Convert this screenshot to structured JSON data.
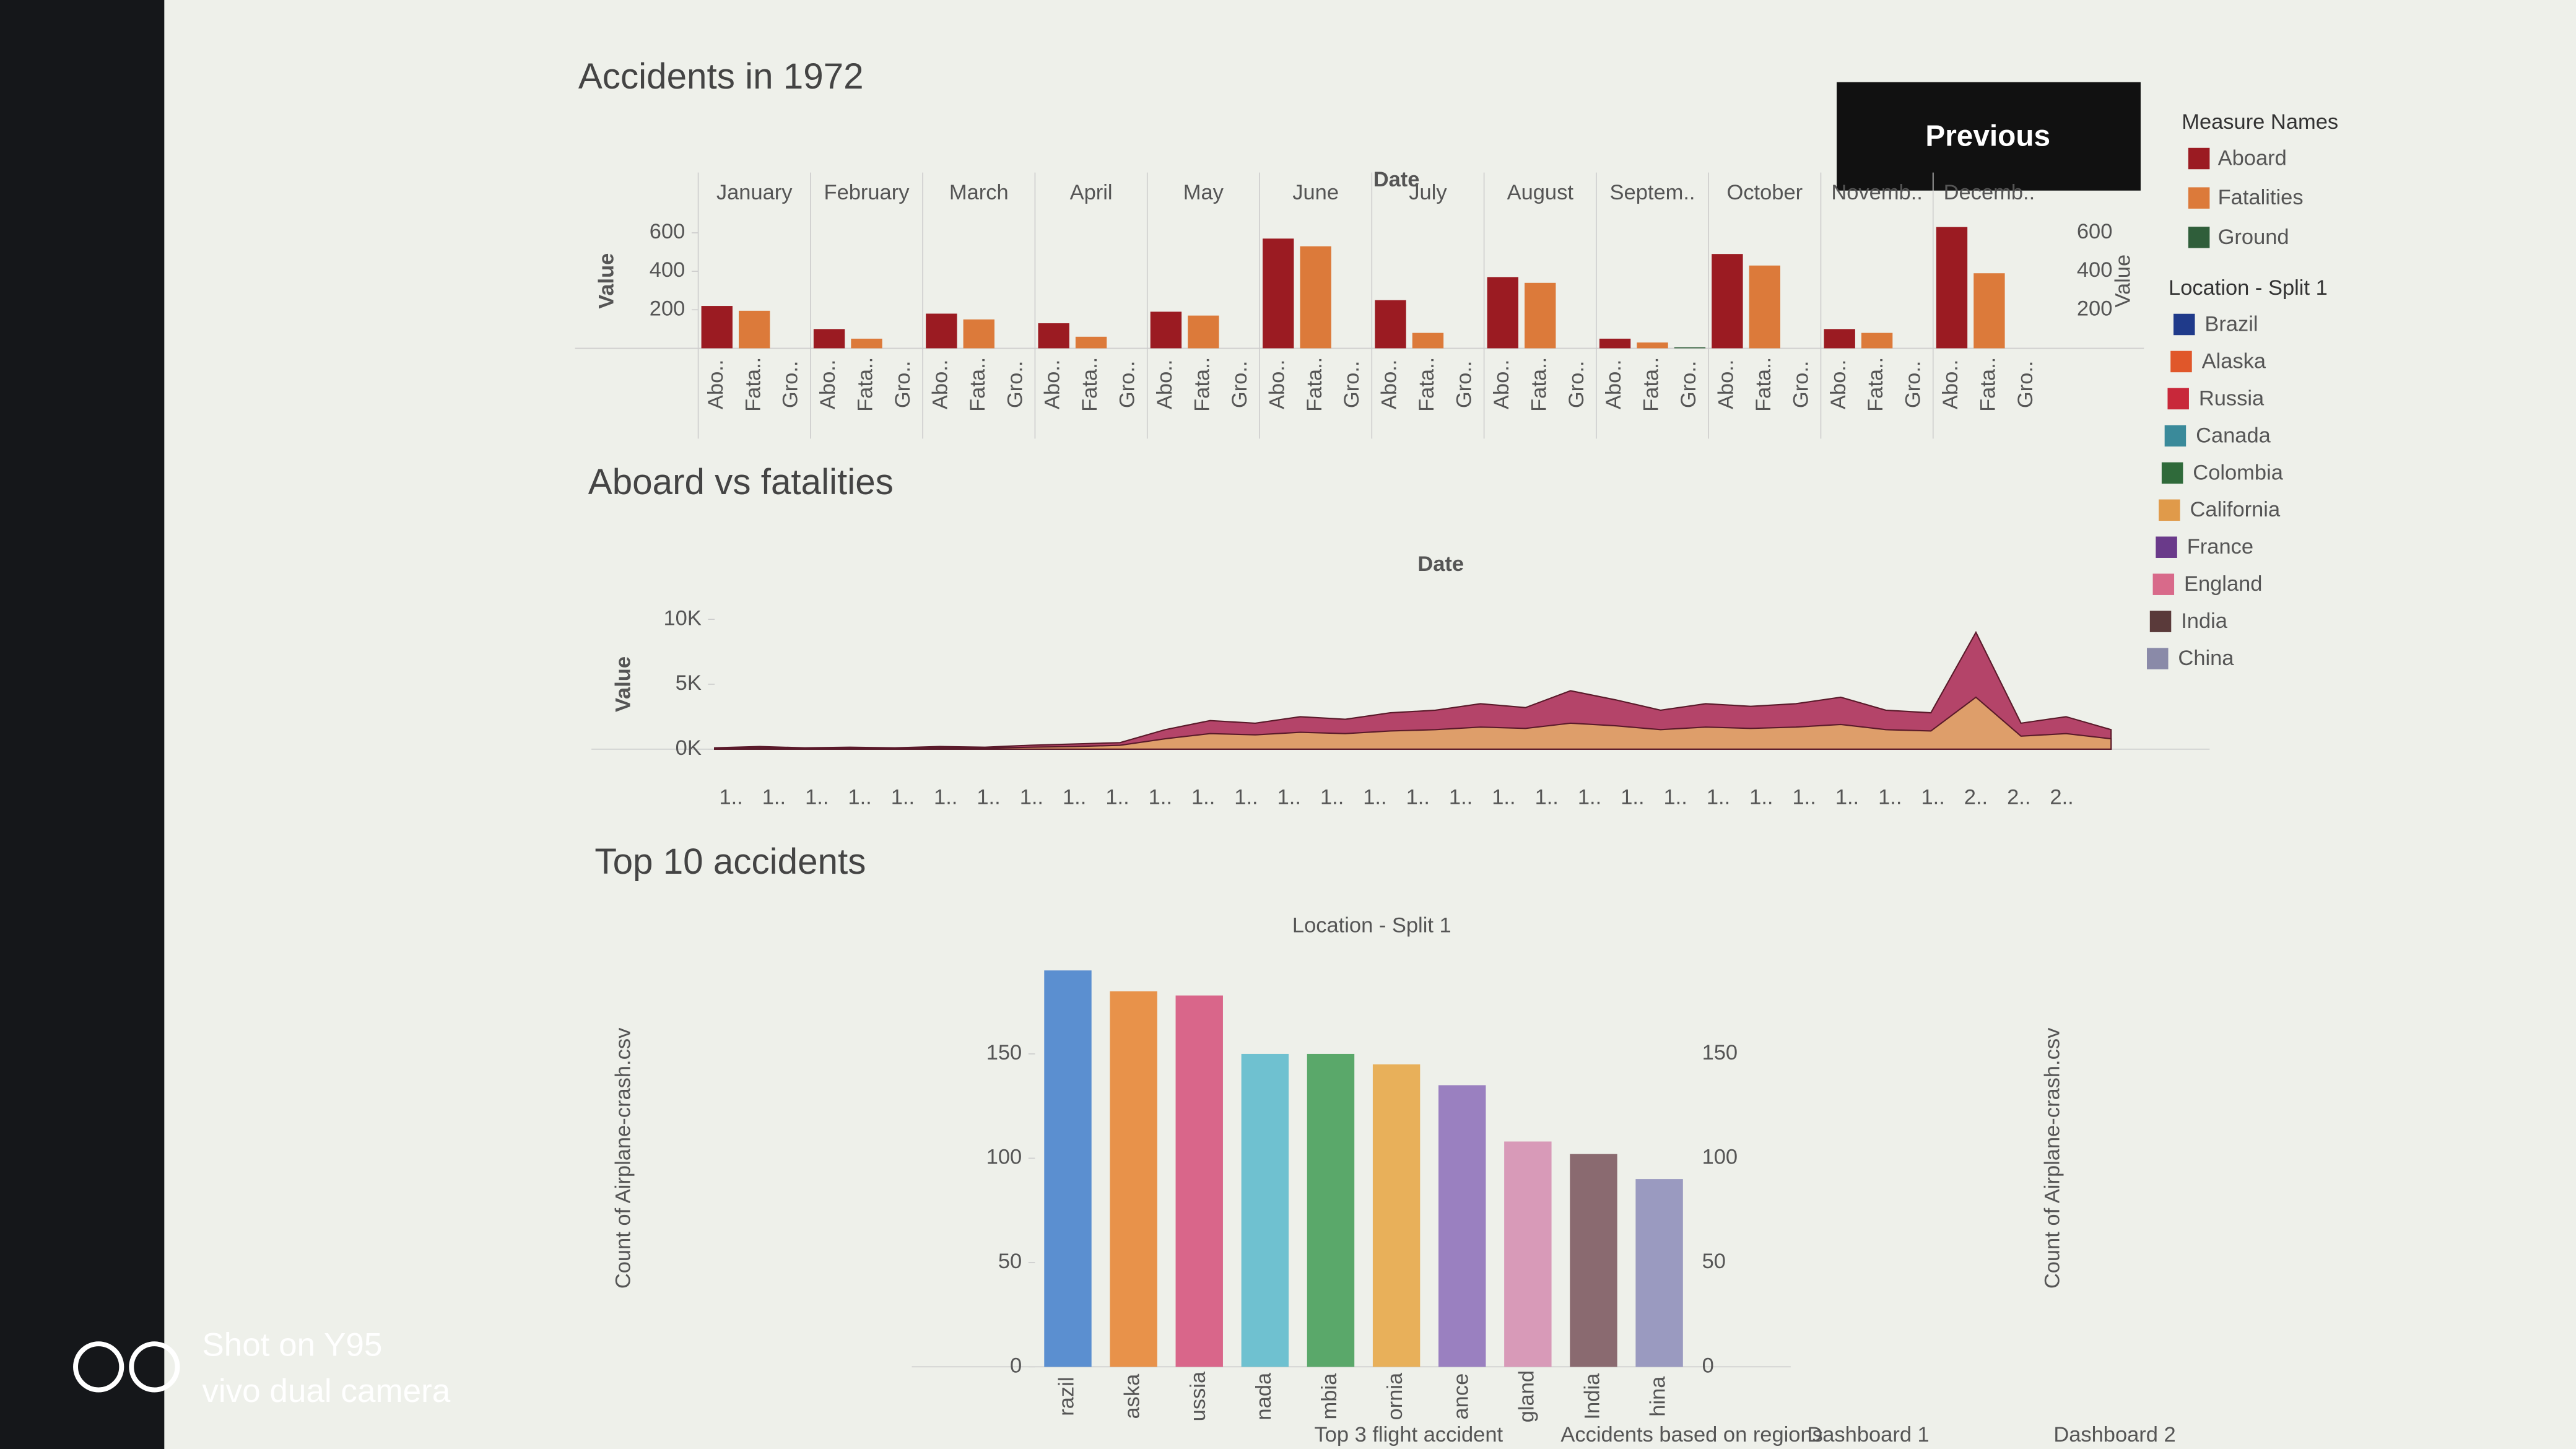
{
  "chart_data": [
    {
      "type": "grouped_bar",
      "title": "Accidents in 1972",
      "x_label": "Date",
      "y_label": "Value",
      "categories": [
        "January",
        "February",
        "March",
        "April",
        "May",
        "June",
        "July",
        "August",
        "Septem..",
        "October",
        "Novemb..",
        "Decemb.."
      ],
      "bar_labels": [
        "Abo..",
        "Fata..",
        "Gro.."
      ],
      "series": [
        {
          "name": "Aboard",
          "color": "#9b1b22",
          "values": [
            220,
            100,
            180,
            130,
            190,
            570,
            250,
            370,
            50,
            490,
            100,
            630
          ]
        },
        {
          "name": "Fatalities",
          "color": "#dc7a3a",
          "values": [
            195,
            50,
            150,
            60,
            170,
            530,
            80,
            340,
            30,
            430,
            80,
            390
          ]
        },
        {
          "name": "Ground",
          "color": "#2f5e3a",
          "values": [
            0,
            0,
            0,
            0,
            0,
            0,
            0,
            0,
            5,
            0,
            0,
            0
          ]
        }
      ],
      "ylim": [
        0,
        700
      ],
      "yticks": [
        200,
        400,
        600
      ]
    },
    {
      "type": "area",
      "title": "Aboard vs fatalities",
      "x_label": "Date",
      "y_label": "Value",
      "categories": [
        "1..",
        "1..",
        "1..",
        "1..",
        "1..",
        "1..",
        "1..",
        "1..",
        "1..",
        "1..",
        "1..",
        "1..",
        "1..",
        "1..",
        "1..",
        "1..",
        "1..",
        "1..",
        "1..",
        "1..",
        "1..",
        "1..",
        "1..",
        "1..",
        "1..",
        "1..",
        "1..",
        "1..",
        "1..",
        "2..",
        "2..",
        "2.."
      ],
      "series": [
        {
          "name": "Aboard",
          "color": "#b03a62",
          "values": [
            100,
            200,
            100,
            150,
            100,
            200,
            150,
            300,
            400,
            500,
            1500,
            2200,
            2000,
            2500,
            2300,
            2800,
            3000,
            3500,
            3200,
            4500,
            3800,
            3000,
            3500,
            3300,
            3500,
            4000,
            3000,
            2800,
            9000,
            2000,
            2500,
            1500
          ]
        },
        {
          "name": "Fatalities",
          "color": "#e0a36a",
          "values": [
            50,
            100,
            50,
            80,
            50,
            100,
            80,
            150,
            200,
            300,
            800,
            1200,
            1100,
            1300,
            1200,
            1400,
            1500,
            1700,
            1600,
            2000,
            1800,
            1500,
            1700,
            1600,
            1700,
            1900,
            1500,
            1400,
            4000,
            1000,
            1200,
            800
          ]
        }
      ],
      "ylim": [
        0,
        10000
      ],
      "yticks": [
        {
          "value": 0,
          "label": "0K"
        },
        {
          "value": 5000,
          "label": "5K"
        },
        {
          "value": 10000,
          "label": "10K"
        }
      ]
    },
    {
      "type": "bar",
      "title": "Top 10 accidents",
      "x_label": "Location - Split 1",
      "y_label": "Count of Airplane-crash.csv",
      "categories": [
        "razil",
        "aska",
        "ussia",
        "nada",
        "mbia",
        "ornia",
        "ance",
        "gland",
        "India",
        "hina"
      ],
      "values": [
        190,
        180,
        178,
        150,
        150,
        145,
        135,
        108,
        102,
        90
      ],
      "colors": [
        "#5b8fd0",
        "#e8924a",
        "#d9668a",
        "#6fc1d0",
        "#5aa86a",
        "#e8b05a",
        "#9a80c0",
        "#d89ab8",
        "#8a6a70",
        "#9a9ac0"
      ],
      "ylim": [
        0,
        200
      ],
      "yticks": [
        0,
        50,
        100,
        150
      ]
    }
  ],
  "button": "Previous",
  "legend": {
    "measure_title": "Measure Names",
    "measures": [
      {
        "name": "Aboard",
        "color": "#9b1b22"
      },
      {
        "name": "Fatalities",
        "color": "#dc7a3a"
      },
      {
        "name": "Ground",
        "color": "#2f5e3a"
      }
    ],
    "location_title": "Location - Split 1",
    "locations": [
      {
        "name": "Brazil",
        "color": "#1f3a8a"
      },
      {
        "name": "Alaska",
        "color": "#e0572a"
      },
      {
        "name": "Russia",
        "color": "#c8283a"
      },
      {
        "name": "Canada",
        "color": "#3a8a9a"
      },
      {
        "name": "Colombia",
        "color": "#2f6a3a"
      },
      {
        "name": "California",
        "color": "#e09a4a"
      },
      {
        "name": "France",
        "color": "#6a3a8a"
      },
      {
        "name": "England",
        "color": "#d86a8a"
      },
      {
        "name": "India",
        "color": "#5a3a3a"
      },
      {
        "name": "China",
        "color": "#8a8aa8"
      }
    ]
  },
  "tabs": [
    "Top 3 flight accident",
    "Accidents based on regions",
    "Dashboard 1",
    "Dashboard 2"
  ],
  "watermark": [
    "Shot on Y95",
    "vivo dual camera"
  ]
}
